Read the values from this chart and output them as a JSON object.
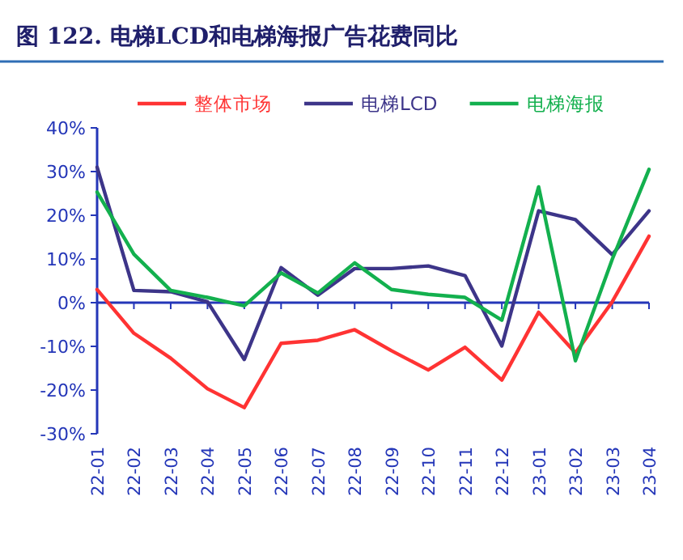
{
  "chart_data": {
    "type": "line",
    "title": "图 122. 电梯LCD和电梯海报广告花费同比",
    "categories": [
      "22-01",
      "22-02",
      "22-03",
      "22-04",
      "22-05",
      "22-06",
      "22-07",
      "22-08",
      "22-09",
      "22-10",
      "22-11",
      "22-12",
      "23-01",
      "23-02",
      "23-03",
      "23-04"
    ],
    "series": [
      {
        "name": "整体市场",
        "color": "#ff3333",
        "values": [
          3,
          -7,
          -12.7,
          -19.7,
          -24,
          -9.3,
          -8.6,
          -6.2,
          -11,
          -15.4,
          -10.2,
          -17.7,
          -2.2,
          -11.5,
          0.2,
          15.2
        ]
      },
      {
        "name": "电梯LCD",
        "color": "#3d3589",
        "values": [
          31,
          2.8,
          2.5,
          0.2,
          -13,
          8,
          1.7,
          7.8,
          7.8,
          8.4,
          6.2,
          -9.9,
          21,
          19,
          11,
          21
        ]
      },
      {
        "name": "电梯海报",
        "color": "#13b04e",
        "values": [
          25.3,
          11.1,
          2.8,
          1.2,
          -0.7,
          6.8,
          2.2,
          9.1,
          3,
          1.9,
          1.2,
          -4,
          26.5,
          -13.3,
          9.9,
          30.5
        ]
      }
    ],
    "ylim": [
      -30,
      40
    ],
    "yticks": [
      {
        "value": -30,
        "label": "-30%"
      },
      {
        "value": -20,
        "label": "-20%"
      },
      {
        "value": -10,
        "label": "-10%"
      },
      {
        "value": 0,
        "label": "0%"
      },
      {
        "value": 10,
        "label": "10%"
      },
      {
        "value": 20,
        "label": "20%"
      },
      {
        "value": 30,
        "label": "30%"
      },
      {
        "value": 40,
        "label": "40%"
      }
    ],
    "ref_lines": [
      {
        "axis": "y",
        "value": 0,
        "color": "#2436b8"
      }
    ],
    "legend": "top",
    "grid": false
  }
}
